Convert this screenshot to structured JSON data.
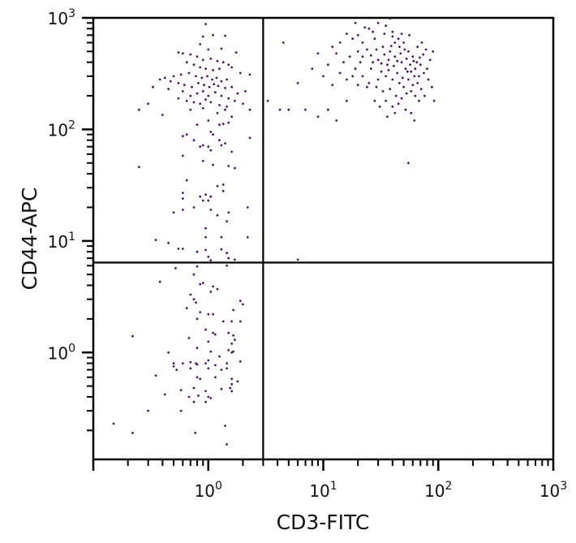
{
  "chart_data": {
    "type": "scatter",
    "title": "",
    "xlabel": "CD3-FITC",
    "ylabel": "CD44-APC",
    "x_scale": "log",
    "y_scale": "log",
    "xlim": [
      0.1,
      1000
    ],
    "ylim": [
      0.11,
      1000
    ],
    "grid": false,
    "point_color": "#4a1a5a",
    "x_ticks": [
      {
        "value": 1,
        "base": "10",
        "exp": "0"
      },
      {
        "value": 10,
        "base": "10",
        "exp": "1"
      },
      {
        "value": 100,
        "base": "10",
        "exp": "2"
      },
      {
        "value": 1000,
        "base": "10",
        "exp": "3"
      }
    ],
    "y_ticks": [
      {
        "value": 1,
        "base": "10",
        "exp": "0"
      },
      {
        "value": 10,
        "base": "10",
        "exp": "1"
      },
      {
        "value": 100,
        "base": "10",
        "exp": "2"
      },
      {
        "value": 1000,
        "base": "10",
        "exp": "3"
      }
    ],
    "quadrant_gates": {
      "x": 3,
      "y": 6.4
    },
    "points": [
      [
        20,
        700
      ],
      [
        25,
        800
      ],
      [
        30,
        900
      ],
      [
        35,
        850
      ],
      [
        40,
        750
      ],
      [
        28,
        650
      ],
      [
        22,
        600
      ],
      [
        45,
        650
      ],
      [
        50,
        600
      ],
      [
        33,
        550
      ],
      [
        38,
        500
      ],
      [
        42,
        450
      ],
      [
        55,
        500
      ],
      [
        60,
        450
      ],
      [
        65,
        400
      ],
      [
        70,
        380
      ],
      [
        48,
        400
      ],
      [
        52,
        350
      ],
      [
        58,
        330
      ],
      [
        62,
        300
      ],
      [
        44,
        320
      ],
      [
        36,
        380
      ],
      [
        30,
        420
      ],
      [
        26,
        460
      ],
      [
        20,
        500
      ],
      [
        17,
        450
      ],
      [
        15,
        400
      ],
      [
        13,
        480
      ],
      [
        12,
        550
      ],
      [
        14,
        600
      ],
      [
        18,
        650
      ],
      [
        24,
        520
      ],
      [
        27,
        400
      ],
      [
        32,
        330
      ],
      [
        35,
        300
      ],
      [
        40,
        280
      ],
      [
        46,
        260
      ],
      [
        50,
        240
      ],
      [
        55,
        280
      ],
      [
        60,
        250
      ],
      [
        68,
        300
      ],
      [
        75,
        320
      ],
      [
        80,
        350
      ],
      [
        85,
        420
      ],
      [
        90,
        500
      ],
      [
        78,
        520
      ],
      [
        72,
        600
      ],
      [
        66,
        550
      ],
      [
        56,
        700
      ],
      [
        48,
        720
      ],
      [
        40,
        680
      ],
      [
        34,
        720
      ],
      [
        27,
        750
      ],
      [
        23,
        820
      ],
      [
        19,
        900
      ],
      [
        16,
        720
      ],
      [
        11,
        380
      ],
      [
        10,
        300
      ],
      [
        12,
        250
      ],
      [
        14,
        320
      ],
      [
        16,
        280
      ],
      [
        19,
        350
      ],
      [
        22,
        300
      ],
      [
        25,
        260
      ],
      [
        29,
        240
      ],
      [
        33,
        220
      ],
      [
        38,
        230
      ],
      [
        43,
        200
      ],
      [
        48,
        190
      ],
      [
        53,
        210
      ],
      [
        58,
        220
      ],
      [
        63,
        200
      ],
      [
        68,
        180
      ],
      [
        45,
        170
      ],
      [
        40,
        160
      ],
      [
        52,
        150
      ],
      [
        58,
        140
      ],
      [
        62,
        120
      ],
      [
        35,
        180
      ],
      [
        30,
        280
      ],
      [
        37,
        420
      ],
      [
        41,
        370
      ],
      [
        47,
        480
      ],
      [
        53,
        430
      ],
      [
        57,
        380
      ],
      [
        63,
        350
      ],
      [
        69,
        440
      ],
      [
        74,
        470
      ],
      [
        82,
        280
      ],
      [
        88,
        240
      ],
      [
        92,
        180
      ],
      [
        26,
        350
      ],
      [
        21,
        400
      ],
      [
        18,
        300
      ],
      [
        24,
        240
      ],
      [
        28,
        180
      ],
      [
        31,
        160
      ],
      [
        42,
        600
      ],
      [
        46,
        550
      ],
      [
        51,
        520
      ],
      [
        39,
        560
      ],
      [
        34,
        470
      ],
      [
        29,
        520
      ],
      [
        44,
        410
      ],
      [
        49,
        290
      ],
      [
        54,
        330
      ],
      [
        61,
        410
      ],
      [
        66,
        260
      ],
      [
        71,
        230
      ],
      [
        76,
        200
      ],
      [
        37,
        340
      ],
      [
        32,
        390
      ],
      [
        22,
        450
      ],
      [
        20,
        250
      ],
      [
        16,
        180
      ],
      [
        9,
        480
      ],
      [
        8,
        350
      ],
      [
        7,
        150
      ],
      [
        9,
        130
      ],
      [
        6,
        260
      ],
      [
        5,
        150
      ],
      [
        4.2,
        150
      ],
      [
        13,
        120
      ],
      [
        11,
        150
      ],
      [
        36,
        130
      ],
      [
        42,
        140
      ],
      [
        55,
        50
      ],
      [
        6,
        6.8
      ],
      [
        3.3,
        180
      ],
      [
        4.5,
        600
      ],
      [
        25,
        1000
      ],
      [
        38,
        990
      ],
      [
        0.95,
        880
      ],
      [
        0.9,
        680
      ],
      [
        1.1,
        700
      ],
      [
        0.85,
        580
      ],
      [
        1.0,
        520
      ],
      [
        1.4,
        690
      ],
      [
        1.3,
        530
      ],
      [
        1.75,
        490
      ],
      [
        0.55,
        490
      ],
      [
        0.6,
        480
      ],
      [
        0.7,
        470
      ],
      [
        0.8,
        450
      ],
      [
        0.9,
        420
      ],
      [
        1.05,
        430
      ],
      [
        1.2,
        410
      ],
      [
        1.35,
        400
      ],
      [
        0.65,
        400
      ],
      [
        0.75,
        380
      ],
      [
        0.85,
        360
      ],
      [
        0.95,
        350
      ],
      [
        1.1,
        340
      ],
      [
        1.25,
        350
      ],
      [
        1.5,
        380
      ],
      [
        1.6,
        360
      ],
      [
        1.9,
        320
      ],
      [
        0.5,
        300
      ],
      [
        0.58,
        310
      ],
      [
        0.68,
        320
      ],
      [
        0.78,
        300
      ],
      [
        0.88,
        290
      ],
      [
        0.98,
        300
      ],
      [
        1.08,
        280
      ],
      [
        1.18,
        290
      ],
      [
        1.3,
        270
      ],
      [
        1.45,
        280
      ],
      [
        0.42,
        290
      ],
      [
        0.47,
        270
      ],
      [
        0.55,
        260
      ],
      [
        0.62,
        250
      ],
      [
        0.72,
        240
      ],
      [
        0.82,
        260
      ],
      [
        0.92,
        250
      ],
      [
        1.02,
        240
      ],
      [
        1.12,
        255
      ],
      [
        1.22,
        245
      ],
      [
        1.4,
        235
      ],
      [
        1.6,
        240
      ],
      [
        0.38,
        280
      ],
      [
        0.45,
        230
      ],
      [
        0.6,
        220
      ],
      [
        0.7,
        200
      ],
      [
        0.8,
        210
      ],
      [
        0.9,
        220
      ],
      [
        1.0,
        200
      ],
      [
        1.15,
        215
      ],
      [
        1.3,
        200
      ],
      [
        1.5,
        190
      ],
      [
        1.8,
        210
      ],
      [
        2.1,
        220
      ],
      [
        2.3,
        310
      ],
      [
        0.33,
        240
      ],
      [
        0.3,
        170
      ],
      [
        0.55,
        190
      ],
      [
        0.65,
        180
      ],
      [
        0.75,
        175
      ],
      [
        0.85,
        170
      ],
      [
        0.95,
        185
      ],
      [
        1.05,
        175
      ],
      [
        1.25,
        165
      ],
      [
        1.45,
        160
      ],
      [
        1.7,
        180
      ],
      [
        2.0,
        170
      ],
      [
        2.3,
        150
      ],
      [
        0.25,
        150
      ],
      [
        0.4,
        135
      ],
      [
        0.7,
        150
      ],
      [
        0.9,
        155
      ],
      [
        1.2,
        140
      ],
      [
        1.4,
        150
      ],
      [
        1.6,
        130
      ],
      [
        1.0,
        120
      ],
      [
        0.8,
        110
      ],
      [
        1.25,
        110
      ],
      [
        1.35,
        112
      ],
      [
        1.5,
        115
      ],
      [
        0.6,
        87
      ],
      [
        0.65,
        90
      ],
      [
        0.75,
        80
      ],
      [
        0.85,
        70
      ],
      [
        1.05,
        95
      ],
      [
        1.1,
        90
      ],
      [
        1.25,
        80
      ],
      [
        1.4,
        75
      ],
      [
        2.3,
        84
      ],
      [
        0.9,
        72
      ],
      [
        1.0,
        70
      ],
      [
        1.05,
        65
      ],
      [
        1.3,
        72
      ],
      [
        1.6,
        63
      ],
      [
        0.6,
        58
      ],
      [
        0.9,
        52
      ],
      [
        1.1,
        48
      ],
      [
        1.5,
        47
      ],
      [
        1.7,
        45
      ],
      [
        0.25,
        46
      ],
      [
        0.65,
        35
      ],
      [
        1.2,
        31
      ],
      [
        1.35,
        32
      ],
      [
        0.6,
        27
      ],
      [
        0.85,
        25
      ],
      [
        0.95,
        26
      ],
      [
        1.05,
        25
      ],
      [
        1.35,
        28
      ],
      [
        0.6,
        24
      ],
      [
        0.9,
        23
      ],
      [
        1.0,
        23
      ],
      [
        0.5,
        18
      ],
      [
        0.6,
        19
      ],
      [
        0.75,
        20
      ],
      [
        1.05,
        19
      ],
      [
        1.2,
        17
      ],
      [
        1.5,
        18
      ],
      [
        2.2,
        20
      ],
      [
        1.45,
        15
      ],
      [
        0.35,
        10.2
      ],
      [
        0.95,
        13
      ],
      [
        0.95,
        10.8
      ],
      [
        1.3,
        10.8
      ],
      [
        2.2,
        10.8
      ],
      [
        0.45,
        9.6
      ],
      [
        0.55,
        8.5
      ],
      [
        0.6,
        8.5
      ],
      [
        0.8,
        8
      ],
      [
        0.95,
        8.3
      ],
      [
        1.3,
        8.4
      ],
      [
        1.45,
        7.8
      ],
      [
        1.0,
        7.2
      ],
      [
        1.5,
        7.0
      ],
      [
        1.7,
        6.8
      ],
      [
        1.05,
        6.7
      ],
      [
        0.52,
        5.7
      ],
      [
        0.8,
        5.9
      ],
      [
        1.45,
        6.0
      ],
      [
        0.75,
        5.0
      ],
      [
        0.38,
        4.3
      ],
      [
        0.85,
        4.1
      ],
      [
        0.9,
        4.2
      ],
      [
        1.1,
        3.9
      ],
      [
        1.2,
        3.7
      ],
      [
        0.7,
        3.3
      ],
      [
        0.75,
        3.0
      ],
      [
        0.78,
        2.8
      ],
      [
        1.05,
        3.5
      ],
      [
        1.9,
        2.9
      ],
      [
        2.0,
        2.7
      ],
      [
        0.65,
        2.5
      ],
      [
        0.85,
        2.3
      ],
      [
        1.0,
        2.2
      ],
      [
        1.1,
        2.2
      ],
      [
        1.65,
        2.4
      ],
      [
        0.8,
        2.0
      ],
      [
        1.35,
        1.9
      ],
      [
        1.6,
        1.9
      ],
      [
        1.9,
        1.9
      ],
      [
        0.22,
        1.4
      ],
      [
        0.95,
        1.6
      ],
      [
        1.1,
        1.5
      ],
      [
        1.15,
        1.45
      ],
      [
        1.5,
        1.5
      ],
      [
        1.65,
        1.42
      ],
      [
        0.68,
        1.35
      ],
      [
        1.0,
        1.25
      ],
      [
        1.6,
        1.2
      ],
      [
        1.7,
        1.3
      ],
      [
        0.45,
        1.0
      ],
      [
        0.8,
        1.1
      ],
      [
        1.05,
        1.02
      ],
      [
        1.25,
        0.92
      ],
      [
        1.5,
        1.05
      ],
      [
        1.6,
        1.0
      ],
      [
        1.65,
        1.02
      ],
      [
        0.5,
        0.8
      ],
      [
        0.6,
        0.8
      ],
      [
        0.7,
        0.82
      ],
      [
        0.78,
        0.8
      ],
      [
        0.95,
        0.8
      ],
      [
        1.0,
        0.85
      ],
      [
        1.45,
        0.8
      ],
      [
        1.9,
        0.83
      ],
      [
        0.53,
        0.7
      ],
      [
        0.5,
        0.75
      ],
      [
        0.7,
        0.72
      ],
      [
        0.8,
        0.78
      ],
      [
        1.0,
        0.72
      ],
      [
        1.15,
        0.77
      ],
      [
        1.3,
        0.7
      ],
      [
        1.45,
        0.72
      ],
      [
        0.35,
        0.62
      ],
      [
        0.8,
        0.6
      ],
      [
        0.85,
        0.58
      ],
      [
        1.15,
        0.6
      ],
      [
        1.6,
        0.58
      ],
      [
        1.8,
        0.55
      ],
      [
        1.6,
        0.52
      ],
      [
        0.58,
        0.46
      ],
      [
        0.75,
        0.48
      ],
      [
        0.95,
        0.45
      ],
      [
        1.3,
        0.47
      ],
      [
        1.55,
        0.48
      ],
      [
        1.6,
        0.45
      ],
      [
        0.42,
        0.42
      ],
      [
        0.68,
        0.4
      ],
      [
        0.82,
        0.41
      ],
      [
        1.0,
        0.4
      ],
      [
        1.05,
        0.39
      ],
      [
        0.95,
        0.36
      ],
      [
        0.75,
        0.36
      ],
      [
        0.3,
        0.3
      ],
      [
        0.58,
        0.3
      ],
      [
        0.15,
        0.23
      ],
      [
        0.22,
        0.19
      ],
      [
        0.77,
        0.19
      ],
      [
        1.4,
        0.22
      ],
      [
        1.45,
        0.15
      ]
    ]
  }
}
